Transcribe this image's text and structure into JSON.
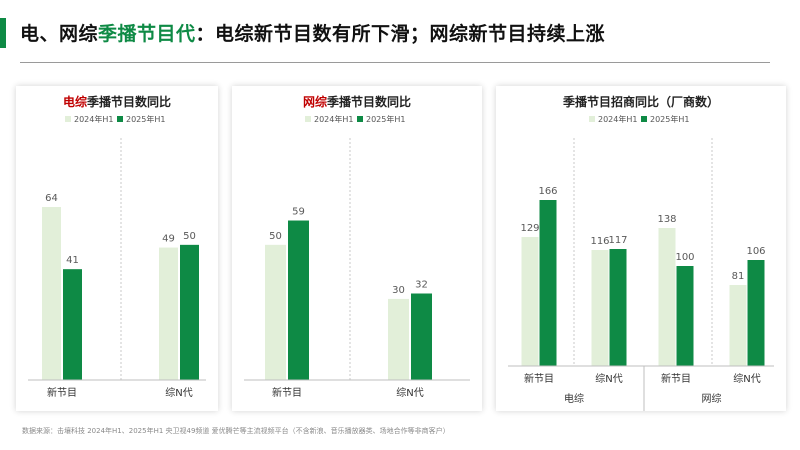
{
  "page": {
    "title_a": "电、网综",
    "title_b": "季播节目代",
    "title_c": "：电综新节目数有所下滑；网综新节目持续上涨",
    "source": "数据来源：击壤科技 2024年H1、2025年H1 央卫视49频道 爱优腾芒等主流视频平台（不含新浪、音乐播放器类、场地合作等非商客户）"
  },
  "colors": {
    "light": "#e2efd9",
    "dark": "#0e8a45",
    "accent": "#0e8a45",
    "red": "#c00000"
  },
  "chart_data": [
    {
      "type": "bar",
      "title_prefix": "电综",
      "title": "季播节目数同比",
      "categories": [
        "新节目",
        "综N代"
      ],
      "series": [
        {
          "name": "2024年H1",
          "values": [
            64,
            49
          ]
        },
        {
          "name": "2025年H1",
          "values": [
            41,
            50
          ]
        }
      ],
      "ylim": [
        0,
        64
      ],
      "legend": "top-center"
    },
    {
      "type": "bar",
      "title_prefix": "网综",
      "title": "季播节目数同比",
      "categories": [
        "新节目",
        "综N代"
      ],
      "series": [
        {
          "name": "2024年H1",
          "values": [
            50,
            30
          ]
        },
        {
          "name": "2025年H1",
          "values": [
            59,
            32
          ]
        }
      ],
      "ylim": [
        0,
        64
      ],
      "legend": "top-center"
    },
    {
      "type": "bar",
      "title_prefix": "",
      "title": "季播节目招商同比（厂商数）",
      "categories": [
        "新节目",
        "综N代",
        "新节目",
        "综N代"
      ],
      "groups": [
        "电综",
        "网综"
      ],
      "series": [
        {
          "name": "2024年H1",
          "values": [
            129,
            116,
            138,
            81
          ]
        },
        {
          "name": "2025年H1",
          "values": [
            166,
            117,
            100,
            106
          ]
        }
      ],
      "ylim": [
        0,
        166
      ],
      "legend": "top-center"
    }
  ]
}
